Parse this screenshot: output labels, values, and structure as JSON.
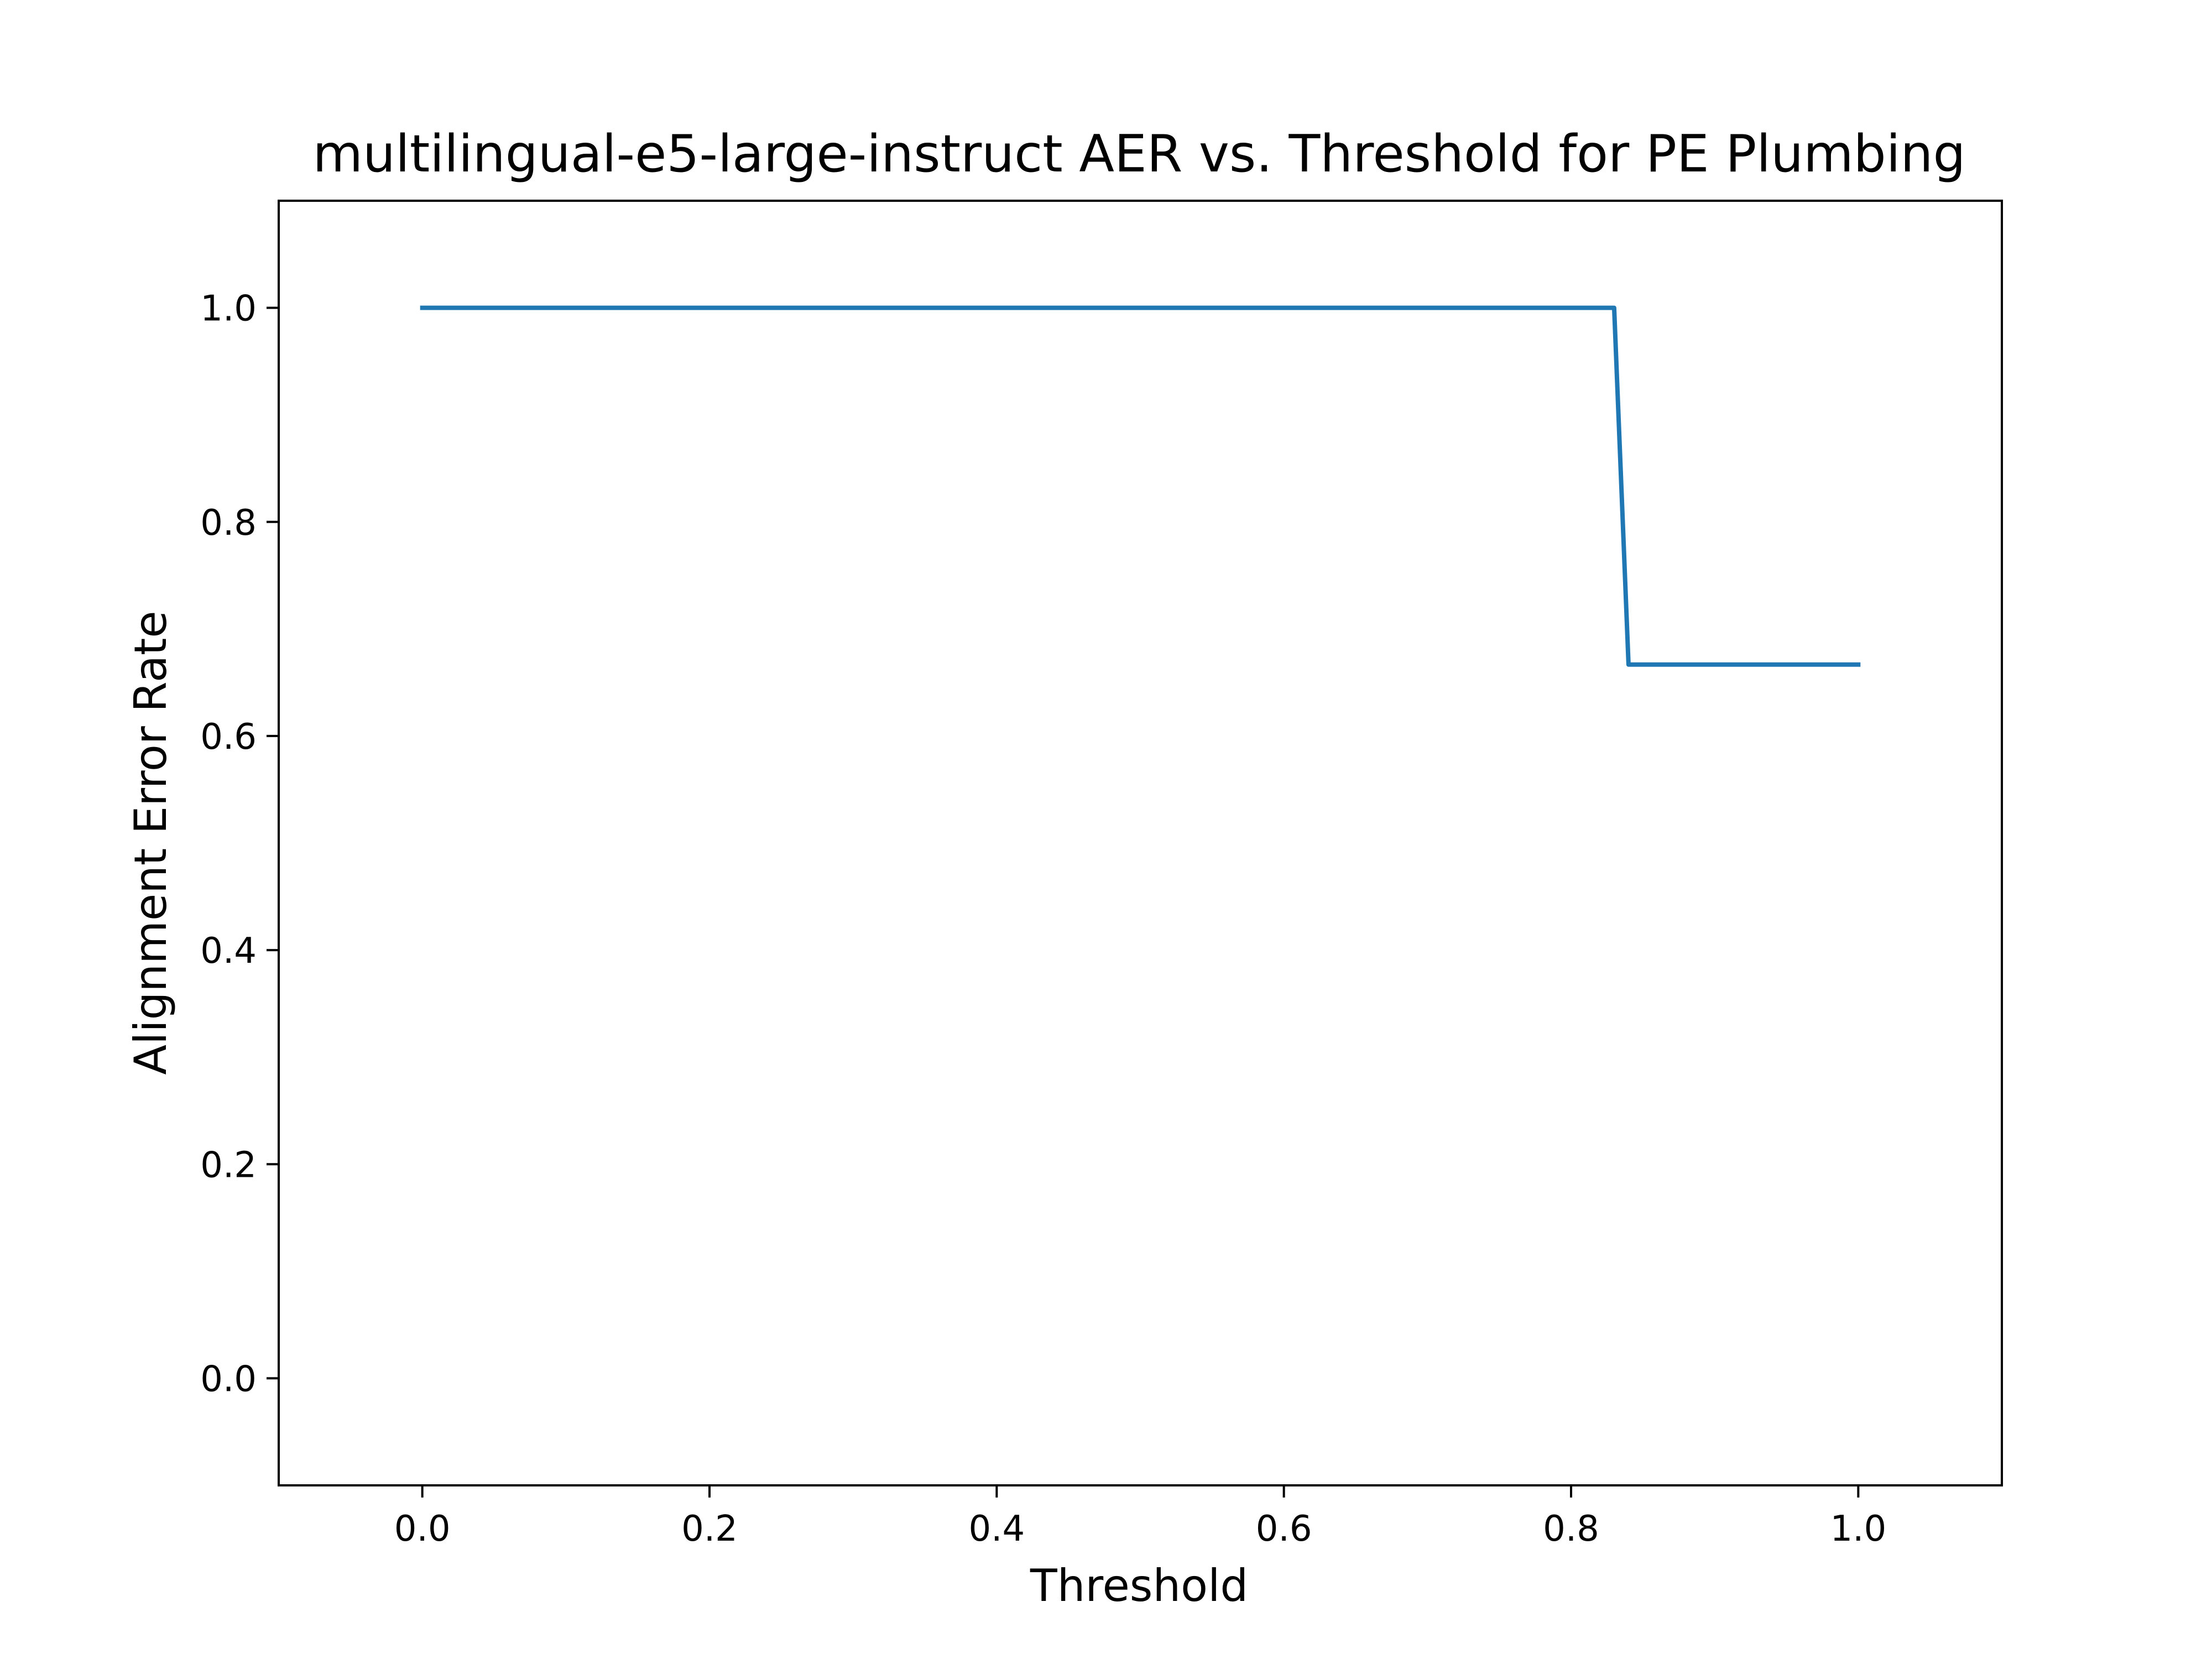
{
  "chart_data": {
    "type": "line",
    "title": "multilingual-e5-large-instruct AER vs. Threshold for PE Plumbing",
    "xlabel": "Threshold",
    "ylabel": "Alignment Error Rate",
    "xlim": [
      -0.1,
      1.1
    ],
    "ylim": [
      -0.1,
      1.1
    ],
    "x_ticks": [
      0.0,
      0.2,
      0.4,
      0.6,
      0.8,
      1.0
    ],
    "x_tick_labels": [
      "0.0",
      "0.2",
      "0.4",
      "0.6",
      "0.8",
      "1.0"
    ],
    "y_ticks": [
      0.0,
      0.2,
      0.4,
      0.6,
      0.8,
      1.0
    ],
    "y_tick_labels": [
      "0.0",
      "0.2",
      "0.4",
      "0.6",
      "0.8",
      "1.0"
    ],
    "grid": false,
    "legend": "none",
    "series": [
      {
        "color": "#1f77b4",
        "x": [
          0.0,
          0.01,
          0.02,
          0.03,
          0.04,
          0.05,
          0.06,
          0.07,
          0.08,
          0.09,
          0.1,
          0.11,
          0.12,
          0.13,
          0.14,
          0.15,
          0.16,
          0.17,
          0.18,
          0.19,
          0.2,
          0.21,
          0.22,
          0.23,
          0.24,
          0.25,
          0.26,
          0.27,
          0.28,
          0.29,
          0.3,
          0.31,
          0.32,
          0.33,
          0.34,
          0.35,
          0.36,
          0.37,
          0.38,
          0.39,
          0.4,
          0.41,
          0.42,
          0.43,
          0.44,
          0.45,
          0.46,
          0.47,
          0.48,
          0.49,
          0.5,
          0.51,
          0.52,
          0.53,
          0.54,
          0.55,
          0.56,
          0.57,
          0.58,
          0.59,
          0.6,
          0.61,
          0.62,
          0.63,
          0.64,
          0.65,
          0.66,
          0.67,
          0.68,
          0.69,
          0.7,
          0.71,
          0.72,
          0.73,
          0.74,
          0.75,
          0.76,
          0.77,
          0.78,
          0.79,
          0.8,
          0.81,
          0.82,
          0.83,
          0.84,
          0.85,
          0.86,
          0.87,
          0.88,
          0.89,
          0.9,
          0.91,
          0.92,
          0.93,
          0.94,
          0.95,
          0.96,
          0.97,
          0.98,
          0.99,
          1.0
        ],
        "y": [
          1.0,
          1.0,
          1.0,
          1.0,
          1.0,
          1.0,
          1.0,
          1.0,
          1.0,
          1.0,
          1.0,
          1.0,
          1.0,
          1.0,
          1.0,
          1.0,
          1.0,
          1.0,
          1.0,
          1.0,
          1.0,
          1.0,
          1.0,
          1.0,
          1.0,
          1.0,
          1.0,
          1.0,
          1.0,
          1.0,
          1.0,
          1.0,
          1.0,
          1.0,
          1.0,
          1.0,
          1.0,
          1.0,
          1.0,
          1.0,
          1.0,
          1.0,
          1.0,
          1.0,
          1.0,
          1.0,
          1.0,
          1.0,
          1.0,
          1.0,
          1.0,
          1.0,
          1.0,
          1.0,
          1.0,
          1.0,
          1.0,
          1.0,
          1.0,
          1.0,
          1.0,
          1.0,
          1.0,
          1.0,
          1.0,
          1.0,
          1.0,
          1.0,
          1.0,
          1.0,
          1.0,
          1.0,
          1.0,
          1.0,
          1.0,
          1.0,
          1.0,
          1.0,
          1.0,
          1.0,
          1.0,
          1.0,
          1.0,
          1.0,
          0.6667,
          0.6667,
          0.6667,
          0.6667,
          0.6667,
          0.6667,
          0.6667,
          0.6667,
          0.6667,
          0.6667,
          0.6667,
          0.6667,
          0.6667,
          0.6667,
          0.6667,
          0.6667,
          0.6667
        ]
      }
    ]
  }
}
